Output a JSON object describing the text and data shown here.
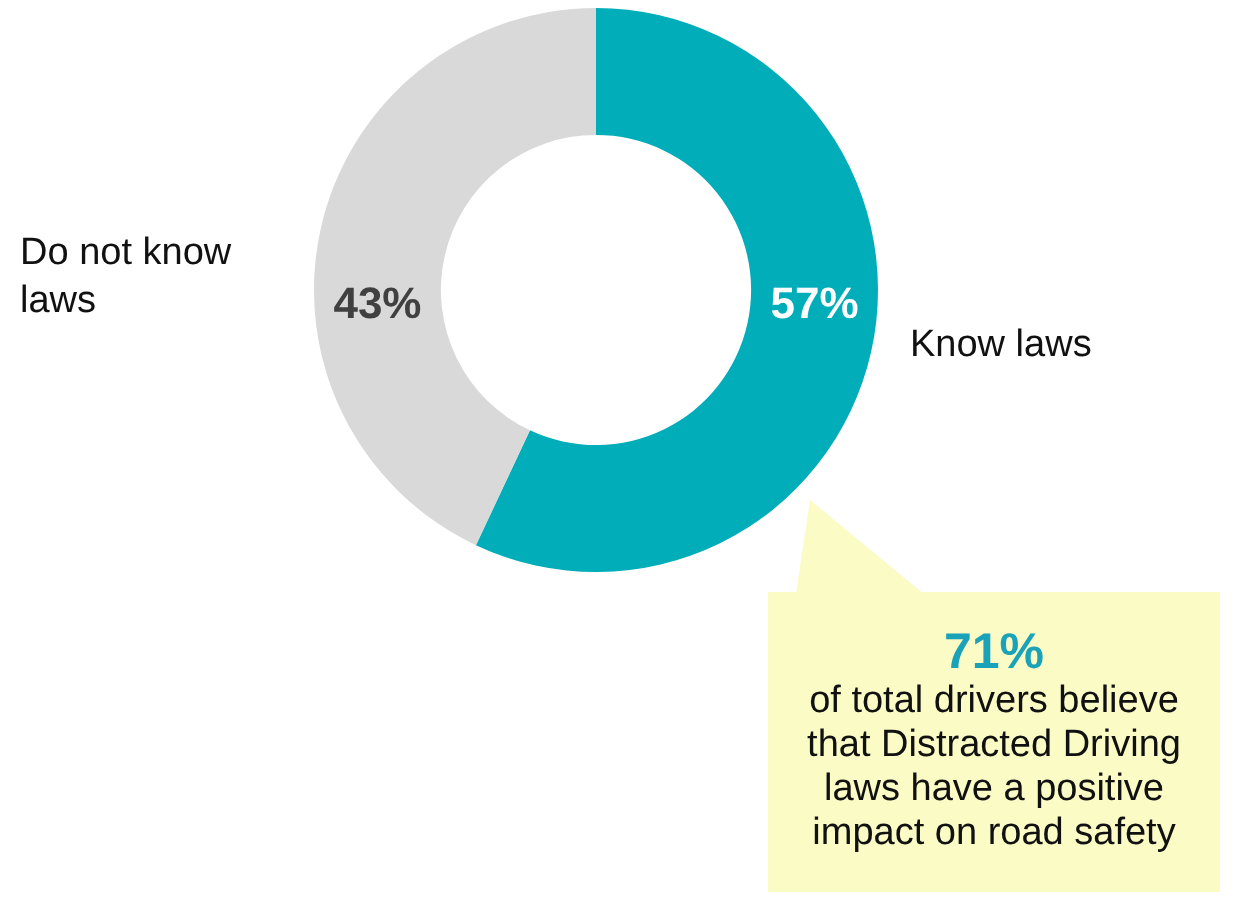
{
  "chart_data": {
    "type": "donut",
    "categories": [
      "Know laws",
      "Do not know laws"
    ],
    "values": [
      57,
      43
    ],
    "colors": [
      "#00adb9",
      "#d9d9d9"
    ],
    "value_labels": [
      "57%",
      "43%"
    ],
    "annotations": [
      "71%",
      "of total drivers believe that Distracted Driving laws have a positive impact on road safety"
    ]
  }
}
